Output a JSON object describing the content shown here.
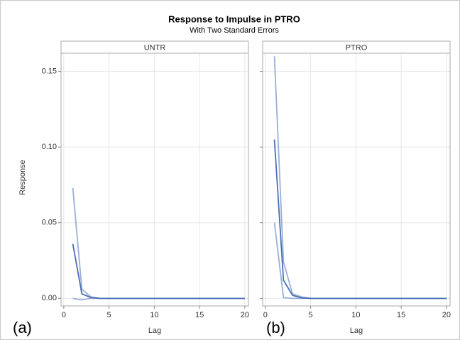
{
  "title": "Response to Impulse in PTRO",
  "subtitle": "With Two Standard Errors",
  "y_label": "Response",
  "chart_data": [
    {
      "type": "line",
      "panel_title": "UNTR",
      "panel_tag": "(a)",
      "x_label": "Lag",
      "x": [
        1,
        2,
        3,
        4,
        5,
        6,
        7,
        8,
        9,
        10,
        11,
        12,
        13,
        14,
        15,
        16,
        17,
        18,
        19,
        20
      ],
      "series": [
        {
          "color": "#9aaed8",
          "values": [
            0.073,
            0.006,
            0.001,
            0,
            0,
            0,
            0,
            0,
            0,
            0,
            0,
            0,
            0,
            0,
            0,
            0,
            0,
            0,
            0,
            0
          ]
        },
        {
          "color": "#9aaed8",
          "values": [
            0,
            -0.001,
            0,
            0,
            0,
            0,
            0,
            0,
            0,
            0,
            0,
            0,
            0,
            0,
            0,
            0,
            0,
            0,
            0,
            0
          ]
        },
        {
          "color": "#4a6fb5",
          "values": [
            0.036,
            0.003,
            0.0005,
            0,
            0,
            0,
            0,
            0,
            0,
            0,
            0,
            0,
            0,
            0,
            0,
            0,
            0,
            0,
            0,
            0
          ]
        }
      ],
      "xlim": [
        -0.3,
        20.4
      ],
      "xticks": [
        0,
        5,
        10,
        15,
        20
      ],
      "ylim": [
        -0.005,
        0.162
      ],
      "yticks": [
        {
          "value": 0,
          "label": "0.00"
        },
        {
          "value": 0.05,
          "label": "0.05"
        },
        {
          "value": 0.1,
          "label": "0.10"
        },
        {
          "value": 0.15,
          "label": "0.15"
        }
      ],
      "grid": true
    },
    {
      "type": "line",
      "panel_title": "PTRO",
      "panel_tag": "(b)",
      "x_label": "Lag",
      "x": [
        1,
        2,
        3,
        4,
        5,
        6,
        7,
        8,
        9,
        10,
        11,
        12,
        13,
        14,
        15,
        16,
        17,
        18,
        19,
        20
      ],
      "series": [
        {
          "color": "#9aaed8",
          "values": [
            0.16,
            0.024,
            0.003,
            0.001,
            0,
            0,
            0,
            0,
            0,
            0,
            0,
            0,
            0,
            0,
            0,
            0,
            0,
            0,
            0,
            0
          ]
        },
        {
          "color": "#9aaed8",
          "values": [
            0.05,
            0.0005,
            0,
            0,
            0,
            0,
            0,
            0,
            0,
            0,
            0,
            0,
            0,
            0,
            0,
            0,
            0,
            0,
            0,
            0
          ]
        },
        {
          "color": "#4a6fb5",
          "values": [
            0.105,
            0.012,
            0.002,
            0.0003,
            0,
            0,
            0,
            0,
            0,
            0,
            0,
            0,
            0,
            0,
            0,
            0,
            0,
            0,
            0,
            0
          ]
        }
      ],
      "xlim": [
        -0.3,
        20.4
      ],
      "xticks": [
        0,
        5,
        10,
        15,
        20
      ],
      "ylim": [
        -0.005,
        0.162
      ],
      "yticks": [
        {
          "value": 0,
          "label": "0.00"
        },
        {
          "value": 0.05,
          "label": "0.05"
        },
        {
          "value": 0.1,
          "label": "0.10"
        },
        {
          "value": 0.15,
          "label": "0.15"
        }
      ],
      "grid": true
    }
  ]
}
